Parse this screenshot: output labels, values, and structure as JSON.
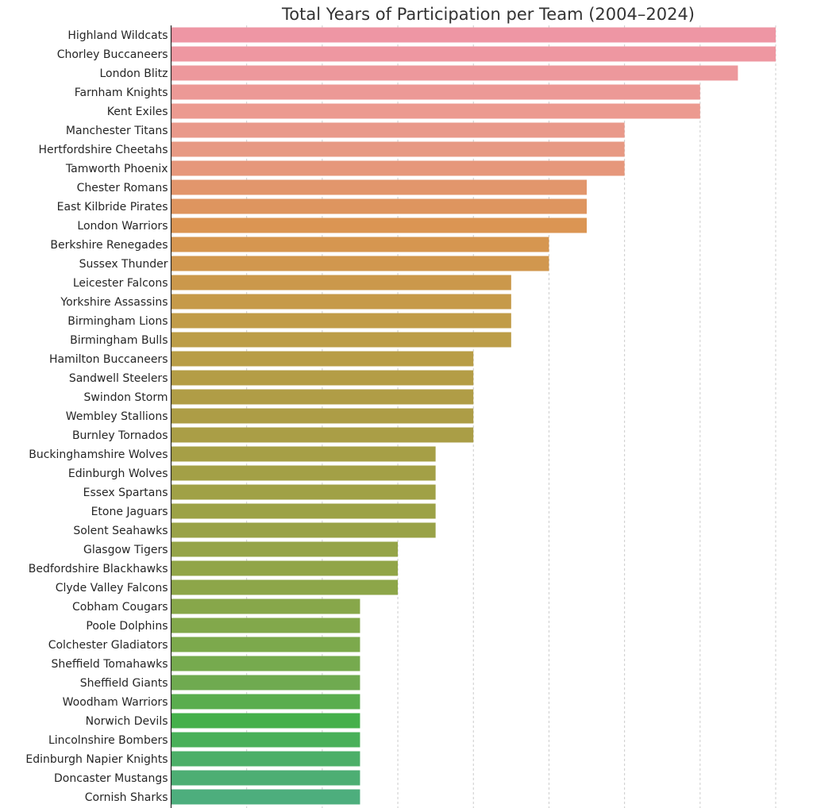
{
  "chart_data": {
    "type": "bar",
    "orientation": "horizontal",
    "title": "Total Years of Participation per Team (2004–2024)",
    "xlabel": "",
    "ylabel": "",
    "xlim": [
      0,
      16
    ],
    "x_gridlines": [
      2,
      4,
      6,
      8,
      10,
      12,
      14,
      16
    ],
    "grid": "vertical dashed",
    "categories": [
      "Highland Wildcats",
      "Chorley Buccaneers",
      "London Blitz",
      "Farnham Knights",
      "Kent Exiles",
      "Manchester Titans",
      "Hertfordshire Cheetahs",
      "Tamworth Phoenix",
      "Chester Romans",
      "East Kilbride Pirates",
      "London Warriors",
      "Berkshire Renegades",
      "Sussex Thunder",
      "Leicester Falcons",
      "Yorkshire Assassins",
      "Birmingham Lions",
      "Birmingham Bulls",
      "Hamilton Buccaneers",
      "Sandwell Steelers",
      "Swindon Storm",
      "Wembley Stallions",
      "Burnley Tornados",
      "Buckinghamshire Wolves",
      "Edinburgh Wolves",
      "Essex Spartans",
      "Etone Jaguars",
      "Solent Seahawks",
      "Glasgow Tigers",
      "Bedfordshire Blackhawks",
      "Clyde Valley Falcons",
      "Cobham Cougars",
      "Poole Dolphins",
      "Colchester Gladiators",
      "Sheffield Tomahawks",
      "Sheffield Giants",
      "Woodham Warriors",
      "Norwich Devils",
      "Lincolnshire Bombers",
      "Edinburgh Napier Knights",
      "Doncaster Mustangs",
      "Cornish Sharks"
    ],
    "values": [
      16,
      16,
      15,
      14,
      14,
      12,
      12,
      12,
      11,
      11,
      11,
      10,
      10,
      9,
      9,
      9,
      9,
      8,
      8,
      8,
      8,
      8,
      7,
      7,
      7,
      7,
      7,
      6,
      6,
      6,
      5,
      5,
      5,
      5,
      5,
      5,
      5,
      5,
      5,
      5,
      5
    ],
    "colors": [
      "#ee96a4",
      "#ee97a1",
      "#ed989c",
      "#ec9996",
      "#ec9a90",
      "#e9998a",
      "#e79983",
      "#e6977b",
      "#e2966c",
      "#de955f",
      "#db9553",
      "#d69650",
      "#d1974e",
      "#cb984b",
      "#c69a49",
      "#c19c48",
      "#bc9d47",
      "#b89d46",
      "#b49d46",
      "#b09d46",
      "#ad9d46",
      "#aa9e46",
      "#a69f46",
      "#a3a046",
      "#a0a146",
      "#9ca246",
      "#99a247",
      "#95a448",
      "#91a548",
      "#8da649",
      "#87a74a",
      "#82a84b",
      "#7ca94c",
      "#76aa4e",
      "#6faa50",
      "#5aad4e",
      "#45b04b",
      "#49b059",
      "#4caf68",
      "#4dae73",
      "#4dae7d"
    ]
  }
}
